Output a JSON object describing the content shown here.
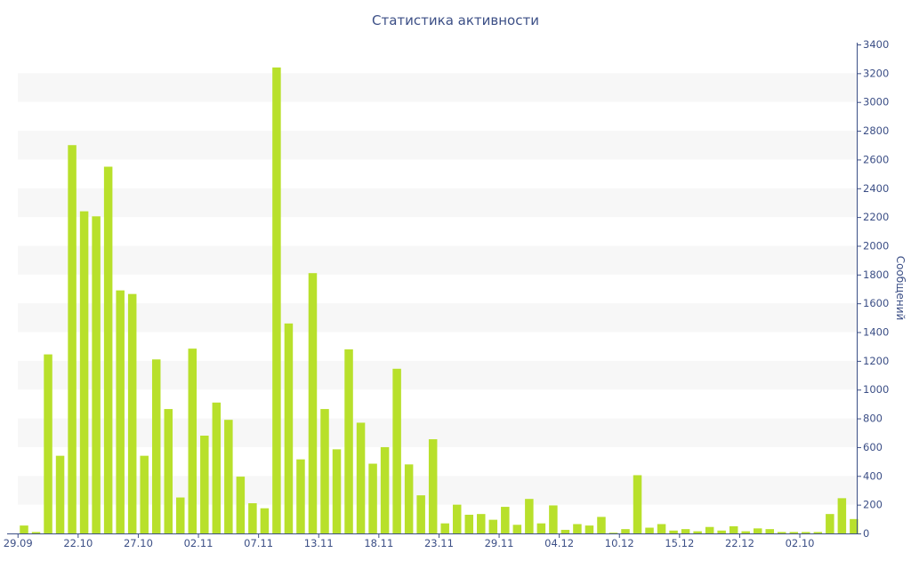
{
  "chart_data": {
    "type": "bar",
    "title": "Статистика активности",
    "ylabel": "Сообщений",
    "y_axis_side": "right",
    "ylim": [
      0,
      3400
    ],
    "y_ticks": [
      0,
      200,
      400,
      600,
      800,
      1000,
      1200,
      1400,
      1600,
      1800,
      2000,
      2200,
      2400,
      2600,
      2800,
      3000,
      3200,
      3400
    ],
    "x_tick_labels": [
      "29.09",
      "22.10",
      "27.10",
      "02.11",
      "07.11",
      "13.11",
      "18.11",
      "23.11",
      "29.11",
      "04.12",
      "10.12",
      "15.12",
      "22.12",
      "02.10"
    ],
    "x_tick_bar_index": [
      0,
      5,
      10,
      15,
      20,
      25,
      30,
      35,
      40,
      45,
      50,
      55,
      60,
      65
    ],
    "values": [
      55,
      10,
      1245,
      540,
      2700,
      2240,
      2205,
      2550,
      1690,
      1665,
      540,
      1210,
      865,
      250,
      1285,
      680,
      910,
      790,
      395,
      210,
      175,
      3240,
      1460,
      515,
      1810,
      865,
      585,
      1280,
      770,
      485,
      600,
      1145,
      480,
      265,
      655,
      70,
      200,
      130,
      135,
      95,
      185,
      60,
      240,
      70,
      195,
      25,
      65,
      55,
      115,
      5,
      30,
      405,
      40,
      65,
      20,
      30,
      15,
      45,
      20,
      50,
      15,
      35,
      30,
      10,
      10,
      10,
      10,
      135,
      245,
      100
    ],
    "bar_color": "#b8e02b",
    "band_color": "#f7f7f7",
    "axis_color": "#3c4f86",
    "grid": "alternating horizontal bands"
  }
}
